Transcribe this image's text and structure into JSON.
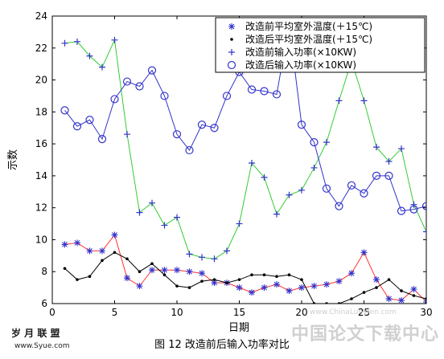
{
  "chart_data": {
    "type": "line",
    "title": "",
    "caption": "图 12  改造前后输入功率对比",
    "xlabel": "日期",
    "ylabel": "示数",
    "xlim": [
      0,
      30
    ],
    "ylim": [
      6,
      24
    ],
    "xticks": [
      0,
      5,
      10,
      15,
      20,
      25,
      30
    ],
    "yticks": [
      6,
      8,
      10,
      12,
      14,
      16,
      18,
      20,
      22,
      24
    ],
    "legend_position": "top-right",
    "series": [
      {
        "name": "改造前平均室外温度(＋15℃)",
        "color": "#ff3333",
        "marker": "asterisk",
        "x": [
          1,
          2,
          3,
          4,
          5,
          6,
          7,
          8,
          9,
          10,
          11,
          12,
          13,
          14,
          15,
          16,
          17,
          18,
          19,
          20,
          21,
          22,
          23,
          24,
          25,
          26,
          27,
          28,
          29,
          30
        ],
        "values": [
          9.7,
          9.8,
          9.3,
          9.3,
          10.3,
          7.6,
          7.1,
          8.1,
          8.1,
          8.1,
          8.0,
          7.9,
          7.3,
          7.3,
          7.0,
          6.7,
          7.0,
          7.2,
          6.8,
          7.0,
          7.1,
          7.2,
          7.4,
          7.9,
          9.2,
          7.5,
          6.3,
          6.2,
          6.9,
          6.1
        ]
      },
      {
        "name": "改造后平均室外温度(＋15℃)",
        "color": "#000000",
        "marker": "dot",
        "x": [
          1,
          2,
          3,
          4,
          5,
          6,
          7,
          8,
          9,
          10,
          11,
          12,
          13,
          14,
          15,
          16,
          17,
          18,
          19,
          20,
          21,
          22,
          23,
          24,
          25,
          26,
          27,
          28,
          29,
          30
        ],
        "values": [
          8.2,
          7.5,
          7.7,
          8.7,
          9.2,
          8.8,
          8.0,
          8.5,
          7.8,
          7.1,
          7.0,
          7.4,
          7.5,
          7.3,
          7.5,
          7.8,
          7.8,
          7.7,
          7.8,
          7.5,
          6.0,
          6.0,
          6.0,
          6.3,
          6.7,
          7.0,
          7.5,
          6.8,
          6.5,
          6.3
        ]
      },
      {
        "name": "改造前输入功率(×10KW)",
        "color": "#33cc33",
        "marker": "plus",
        "x": [
          1,
          2,
          3,
          4,
          5,
          6,
          7,
          8,
          9,
          10,
          11,
          12,
          13,
          14,
          15,
          16,
          17,
          18,
          19,
          20,
          21,
          22,
          23,
          24,
          25,
          26,
          27,
          28,
          29,
          30
        ],
        "values": [
          22.3,
          22.4,
          21.5,
          20.8,
          22.5,
          16.6,
          11.7,
          12.3,
          10.9,
          11.4,
          9.1,
          8.9,
          8.8,
          9.3,
          11.0,
          14.8,
          13.9,
          11.6,
          12.8,
          13.1,
          14.5,
          16.1,
          18.7,
          21.2,
          18.7,
          15.8,
          14.9,
          15.7,
          12.2,
          10.5
        ]
      },
      {
        "name": "改造后输入功率(×10KW)",
        "color": "#3333cc",
        "marker": "circle",
        "x": [
          1,
          2,
          3,
          4,
          5,
          6,
          7,
          8,
          9,
          10,
          11,
          12,
          13,
          14,
          15,
          16,
          17,
          18,
          19,
          20,
          21,
          22,
          23,
          24,
          25,
          26,
          27,
          28,
          29,
          30
        ],
        "values": [
          18.1,
          17.1,
          17.5,
          16.3,
          18.8,
          19.9,
          19.6,
          20.6,
          19.0,
          16.6,
          15.6,
          17.2,
          17.0,
          19.0,
          20.5,
          19.4,
          19.3,
          19.1,
          23.5,
          17.2,
          16.1,
          13.2,
          12.1,
          13.4,
          12.9,
          14.0,
          14.0,
          11.8,
          11.9,
          12.1
        ]
      }
    ]
  },
  "watermarks": {
    "left_cn": "岁 月 联 盟",
    "left_url": "www.Syue.com",
    "right_cn": "中国论文下载中心",
    "right_url": "www.ChinaLunWen.com"
  }
}
